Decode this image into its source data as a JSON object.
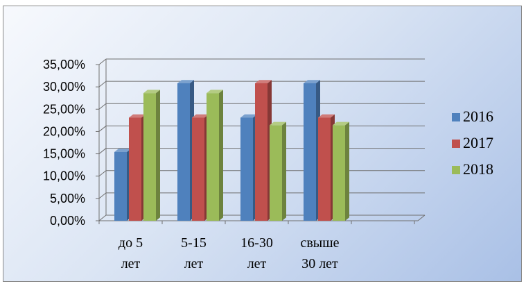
{
  "chart_data": {
    "type": "bar",
    "title": "",
    "xlabel": "",
    "ylabel": "",
    "ylim": [
      0,
      35
    ],
    "yticks": [
      "0,00%",
      "5,00%",
      "10,00%",
      "15,00%",
      "20,00%",
      "25,00%",
      "30,00%",
      "35,00%"
    ],
    "categories": [
      [
        "до 5",
        "лет"
      ],
      [
        "5-15",
        "лет"
      ],
      [
        "16-30",
        "лет"
      ],
      [
        "свыше",
        "30 лет"
      ]
    ],
    "series": [
      {
        "name": "2016",
        "color": "#4f81bd",
        "values": [
          15.4,
          30.8,
          23.1,
          30.8
        ]
      },
      {
        "name": "2017",
        "color": "#c0504d",
        "values": [
          23.1,
          23.1,
          30.8,
          23.1
        ]
      },
      {
        "name": "2018",
        "color": "#9bbb59",
        "values": [
          28.6,
          28.6,
          21.4,
          21.4
        ]
      }
    ],
    "grid": true,
    "legend": "right",
    "style": "3d-clustered-column"
  }
}
